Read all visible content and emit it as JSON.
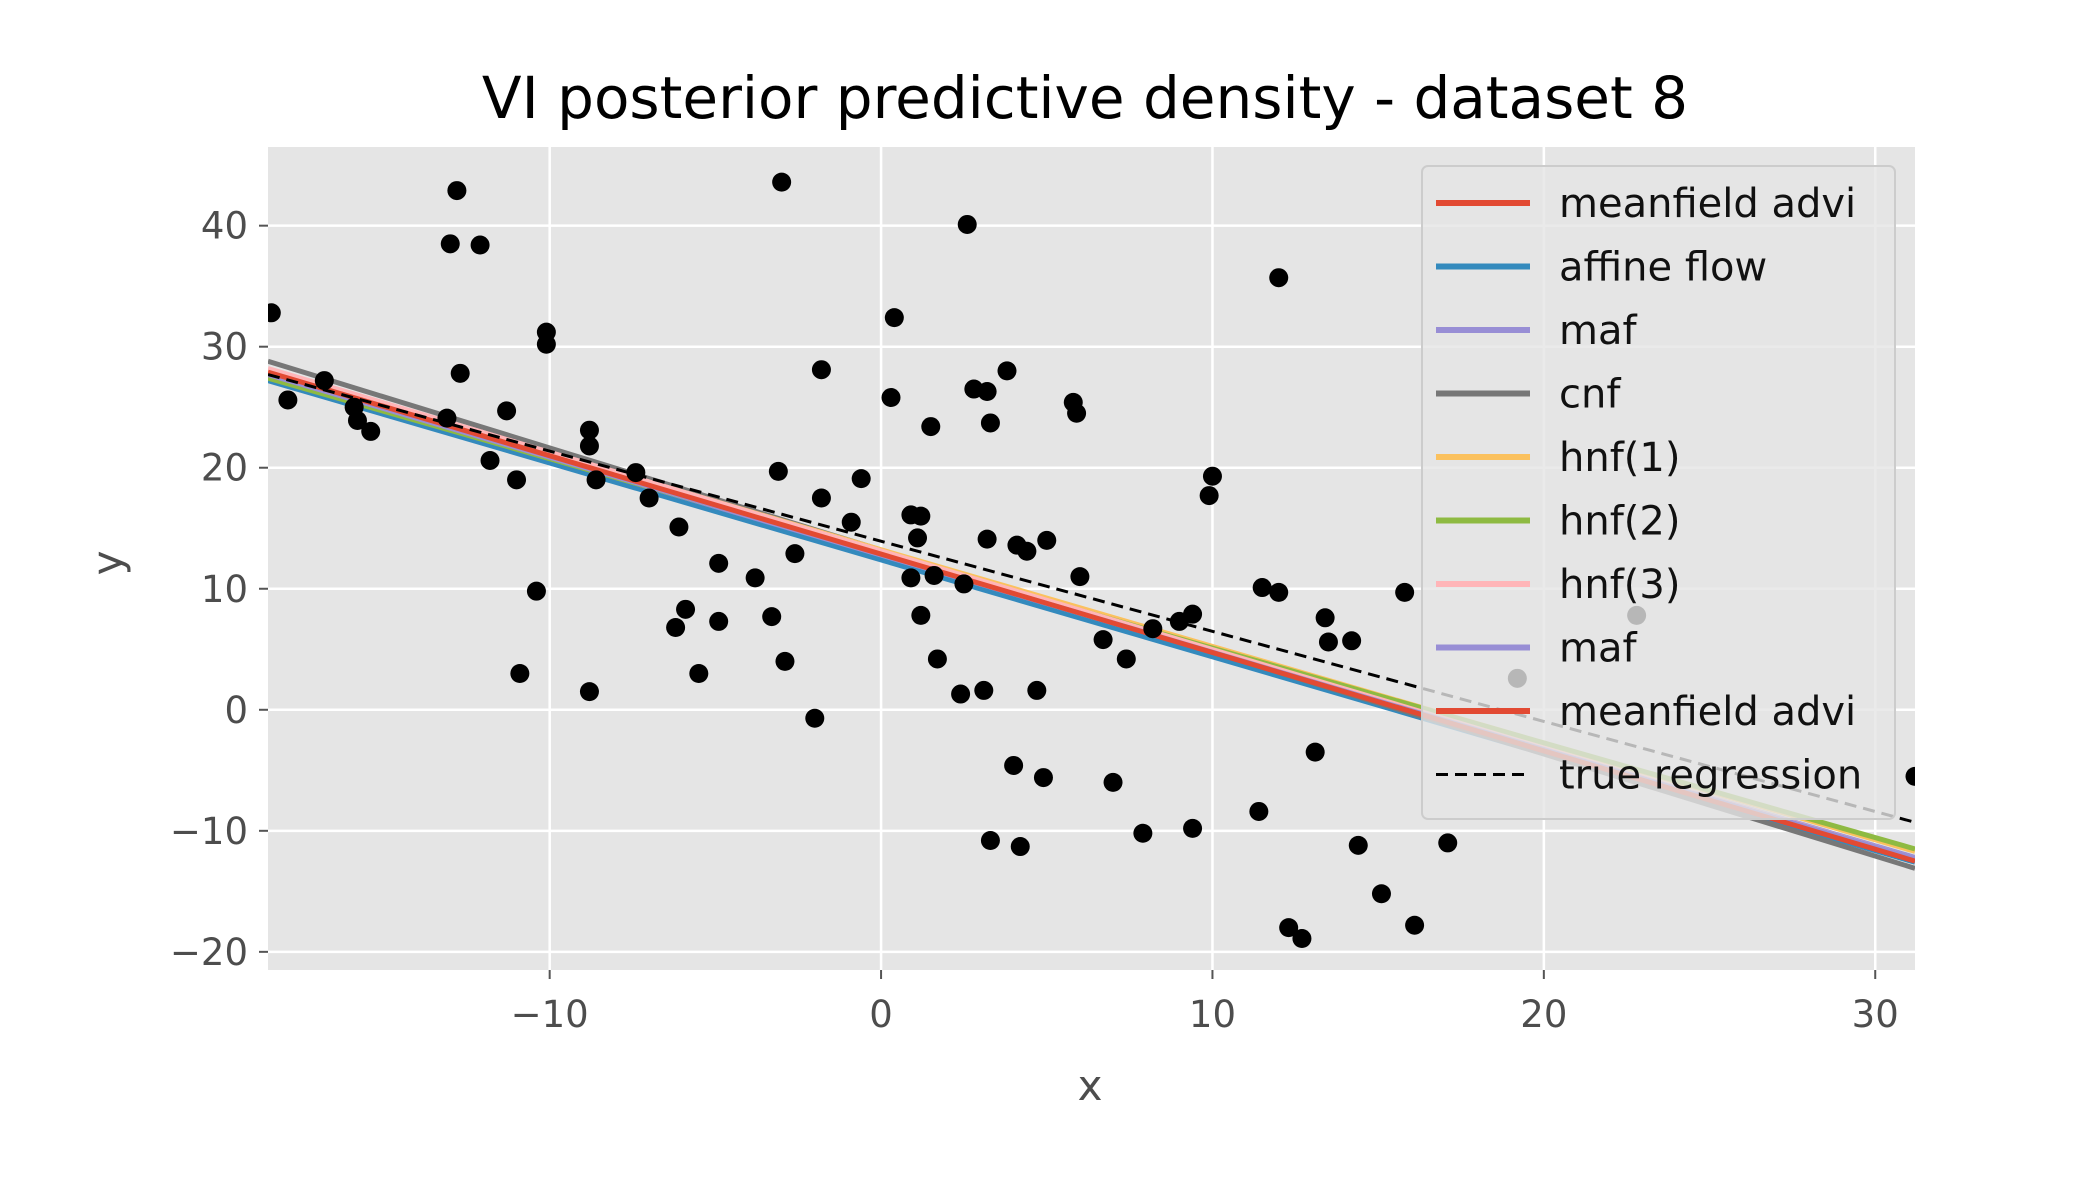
{
  "chart_data": {
    "type": "scatter",
    "title": "VI posterior predictive density - dataset 8",
    "xlabel": "x",
    "ylabel": "y",
    "xlim": [
      -18.5,
      31.2
    ],
    "ylim": [
      -21.5,
      46.5
    ],
    "xticks": [
      -10,
      0,
      10,
      20,
      30
    ],
    "xtick_labels": [
      "−10",
      "0",
      "10",
      "20",
      "30"
    ],
    "yticks": [
      -20,
      -10,
      0,
      10,
      20,
      30,
      40
    ],
    "ytick_labels": [
      "−20",
      "−10",
      "0",
      "10",
      "20",
      "30",
      "40"
    ],
    "grid": true,
    "legend_position": "top-right",
    "points": [
      [
        -18.4,
        32.8
      ],
      [
        -17.9,
        25.6
      ],
      [
        -16.8,
        27.2
      ],
      [
        -15.9,
        25.0
      ],
      [
        -15.8,
        23.9
      ],
      [
        -15.4,
        23.0
      ],
      [
        -13.1,
        24.1
      ],
      [
        -13.0,
        38.5
      ],
      [
        -12.8,
        42.9
      ],
      [
        -12.7,
        27.8
      ],
      [
        -12.1,
        38.4
      ],
      [
        -11.8,
        20.6
      ],
      [
        -11.3,
        24.7
      ],
      [
        -11.0,
        19.0
      ],
      [
        -10.9,
        3.0
      ],
      [
        -10.4,
        9.8
      ],
      [
        -10.1,
        31.2
      ],
      [
        -10.1,
        30.2
      ],
      [
        -8.8,
        23.1
      ],
      [
        -8.8,
        21.8
      ],
      [
        -8.8,
        1.5
      ],
      [
        -8.6,
        19.0
      ],
      [
        -7.4,
        19.6
      ],
      [
        -7.0,
        17.5
      ],
      [
        -6.2,
        6.8
      ],
      [
        -6.1,
        15.1
      ],
      [
        -5.9,
        8.3
      ],
      [
        -5.5,
        3.0
      ],
      [
        -4.9,
        7.3
      ],
      [
        -4.9,
        12.1
      ],
      [
        -3.8,
        10.9
      ],
      [
        -3.3,
        7.7
      ],
      [
        -3.1,
        19.7
      ],
      [
        -3.0,
        43.6
      ],
      [
        -2.9,
        4.0
      ],
      [
        -2.6,
        12.9
      ],
      [
        -2.0,
        -0.7
      ],
      [
        -1.8,
        17.5
      ],
      [
        -1.8,
        28.1
      ],
      [
        -0.9,
        15.5
      ],
      [
        -0.6,
        19.1
      ],
      [
        0.3,
        25.8
      ],
      [
        0.4,
        32.4
      ],
      [
        0.9,
        10.9
      ],
      [
        0.9,
        16.1
      ],
      [
        1.1,
        14.2
      ],
      [
        1.2,
        7.8
      ],
      [
        1.2,
        16.0
      ],
      [
        1.5,
        23.4
      ],
      [
        1.6,
        11.1
      ],
      [
        1.7,
        4.2
      ],
      [
        2.4,
        1.3
      ],
      [
        2.5,
        10.4
      ],
      [
        2.6,
        40.1
      ],
      [
        2.8,
        26.5
      ],
      [
        3.1,
        1.6
      ],
      [
        3.2,
        14.1
      ],
      [
        3.2,
        26.3
      ],
      [
        3.3,
        23.7
      ],
      [
        3.3,
        -10.8
      ],
      [
        3.8,
        28.0
      ],
      [
        4.0,
        -4.6
      ],
      [
        4.1,
        13.6
      ],
      [
        4.2,
        -11.3
      ],
      [
        4.4,
        13.1
      ],
      [
        4.7,
        1.6
      ],
      [
        4.9,
        -5.6
      ],
      [
        5.0,
        14.0
      ],
      [
        5.8,
        25.4
      ],
      [
        5.9,
        24.5
      ],
      [
        6.0,
        11.0
      ],
      [
        6.7,
        5.8
      ],
      [
        7.0,
        -6.0
      ],
      [
        7.4,
        4.2
      ],
      [
        7.9,
        -10.2
      ],
      [
        8.2,
        6.7
      ],
      [
        9.0,
        7.3
      ],
      [
        9.4,
        7.9
      ],
      [
        9.4,
        -9.8
      ],
      [
        9.9,
        17.7
      ],
      [
        10.0,
        19.3
      ],
      [
        11.4,
        -8.4
      ],
      [
        11.5,
        10.1
      ],
      [
        12.0,
        35.7
      ],
      [
        12.0,
        9.7
      ],
      [
        12.3,
        -18.0
      ],
      [
        12.7,
        -18.9
      ],
      [
        13.1,
        -3.5
      ],
      [
        13.4,
        7.6
      ],
      [
        13.5,
        5.6
      ],
      [
        14.2,
        5.7
      ],
      [
        14.4,
        -11.2
      ],
      [
        15.1,
        -15.2
      ],
      [
        15.8,
        9.7
      ],
      [
        16.1,
        -17.8
      ],
      [
        17.1,
        -11.0
      ],
      [
        19.2,
        2.6
      ],
      [
        22.8,
        7.8
      ],
      [
        31.2,
        -5.5
      ]
    ],
    "series": [
      {
        "name": "meanfield advi",
        "color": "#E24A33",
        "x": [
          -18.5,
          31.2
        ],
        "y": [
          27.6,
          -12.4
        ]
      },
      {
        "name": "affine flow",
        "color": "#348ABD",
        "x": [
          -18.5,
          31.2
        ],
        "y": [
          27.2,
          -12.6
        ]
      },
      {
        "name": "maf",
        "color": "#988ED5",
        "x": [
          -18.5,
          31.2
        ],
        "y": [
          27.6,
          -12.2
        ]
      },
      {
        "name": "cnf",
        "color": "#777777",
        "x": [
          -18.5,
          31.2
        ],
        "y": [
          28.8,
          -13.1
        ]
      },
      {
        "name": "hnf(1)",
        "color": "#FBC15E",
        "x": [
          -18.5,
          31.2
        ],
        "y": [
          28.0,
          -11.7
        ]
      },
      {
        "name": "hnf(2)",
        "color": "#8EBA42",
        "x": [
          -18.5,
          31.2
        ],
        "y": [
          27.4,
          -11.5
        ]
      },
      {
        "name": "hnf(3)",
        "color": "#FFB5B8",
        "x": [
          -18.5,
          31.2
        ],
        "y": [
          28.2,
          -12.3
        ]
      },
      {
        "name": "maf",
        "color": "#988ED5",
        "x": [
          -18.5,
          31.2
        ],
        "y": [
          27.7,
          -12.3
        ]
      },
      {
        "name": "meanfield advi",
        "color": "#E24A33",
        "x": [
          -18.5,
          31.2
        ],
        "y": [
          27.9,
          -12.5
        ]
      },
      {
        "name": "true regression",
        "color": "#000000",
        "dashed": true,
        "x": [
          -18.5,
          31.2
        ],
        "y": [
          27.7,
          -9.3
        ]
      }
    ],
    "legend": [
      {
        "label": "meanfield advi",
        "color": "#E24A33",
        "style": "solid"
      },
      {
        "label": "affine flow",
        "color": "#348ABD",
        "style": "solid"
      },
      {
        "label": "maf",
        "color": "#988ED5",
        "style": "solid"
      },
      {
        "label": "cnf",
        "color": "#777777",
        "style": "solid"
      },
      {
        "label": "hnf(1)",
        "color": "#FBC15E",
        "style": "solid"
      },
      {
        "label": "hnf(2)",
        "color": "#8EBA42",
        "style": "solid"
      },
      {
        "label": "hnf(3)",
        "color": "#FFB5B8",
        "style": "solid"
      },
      {
        "label": "maf",
        "color": "#988ED5",
        "style": "solid"
      },
      {
        "label": "meanfield advi",
        "color": "#E24A33",
        "style": "solid"
      },
      {
        "label": "true regression",
        "color": "#000000",
        "style": "dashed"
      }
    ],
    "colors": {
      "plot_background": "#E5E5E5",
      "grid": "#FFFFFF",
      "points": "#000000"
    }
  }
}
